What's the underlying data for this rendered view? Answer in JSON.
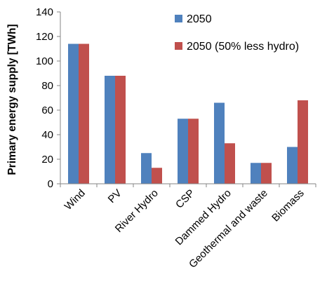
{
  "chart_data": {
    "type": "bar",
    "title": "",
    "xlabel": "",
    "ylabel": "Primary energy supply [TWh]",
    "ylim": [
      0,
      140
    ],
    "yticks": [
      0,
      20,
      40,
      60,
      80,
      100,
      120,
      140
    ],
    "categories": [
      "Wind",
      "PV",
      "River Hydro",
      "CSP",
      "Dammed Hydro",
      "Geothermal and waste",
      "Biomass"
    ],
    "series": [
      {
        "name": "2050",
        "color": "#4F81BD",
        "values": [
          114,
          88,
          25,
          53,
          66,
          17,
          30
        ]
      },
      {
        "name": "2050 (50% less hydro)",
        "color": "#C0504D",
        "values": [
          114,
          88,
          13,
          53,
          33,
          17,
          68
        ]
      }
    ],
    "legend": "top-right",
    "grid": false
  }
}
